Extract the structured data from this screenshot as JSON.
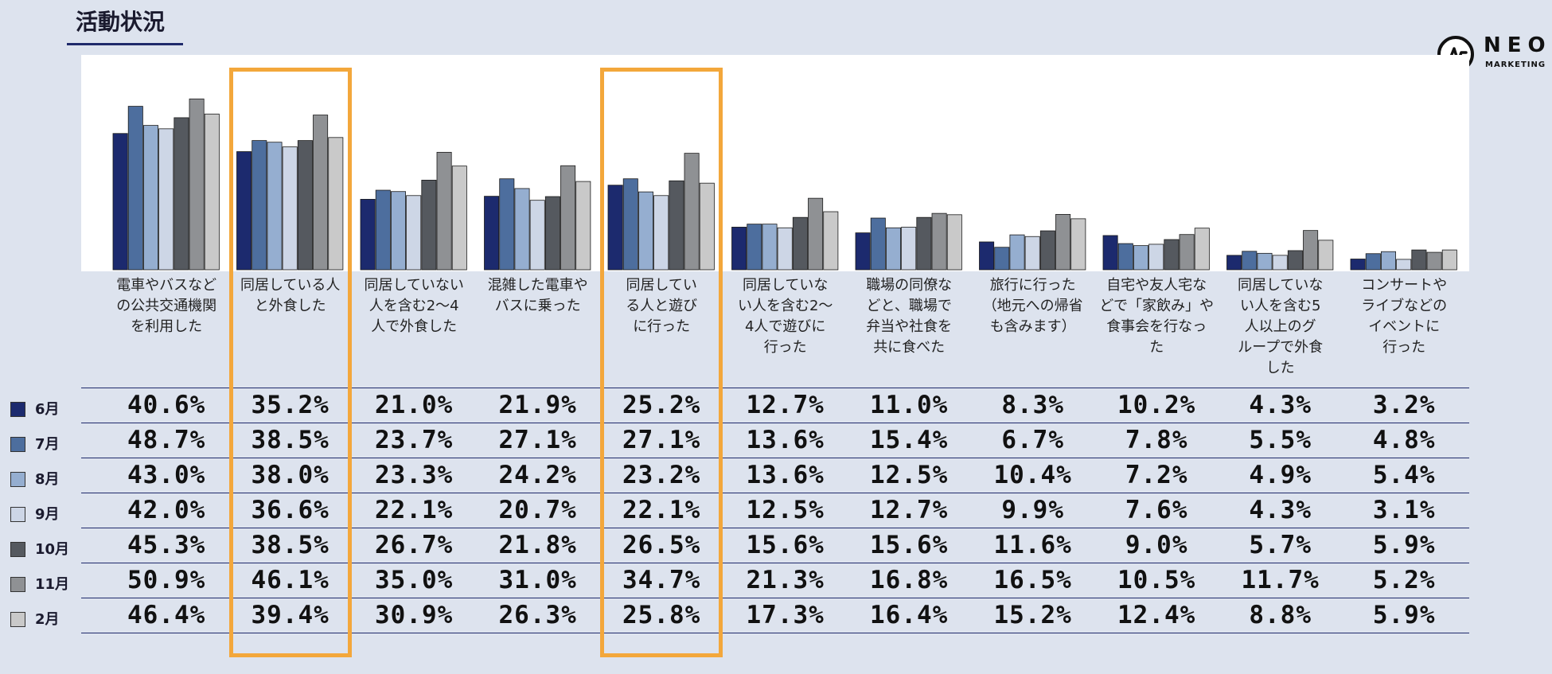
{
  "title": "活動状況",
  "logo": {
    "brand": "NEO",
    "sub": "MARKETING"
  },
  "colors": {
    "accent_border": "#f3a73b",
    "series": [
      "#1c2a6e",
      "#4d6e9e",
      "#95aed0",
      "#cdd6e6",
      "#55595f",
      "#8f9194",
      "#c9c9c9"
    ]
  },
  "chart_data": {
    "type": "bar",
    "categories": [
      "電車やバスなどの公共交通機関を利用した",
      "同居している人と外食した",
      "同居していない人を含む2～4人で外食した",
      "混雑した電車やバスに乗った",
      "同居している人と遊びに行った",
      "同居していない人を含む2～4人で遊びに行った",
      "職場の同僚などと、職場で弁当や社食を共に食べた",
      "旅行に行った（地元への帰省も含みます）",
      "自宅や友人宅などで「家飲み」や食事会を行なった",
      "同居していない人を含む5人以上のグループで外食した",
      "コンサートやライブなどのイベントに行った"
    ],
    "category_label_lines": [
      [
        "電車やバスなど",
        "の公共交通機関",
        "を利用した"
      ],
      [
        "同居している人",
        "と外食した"
      ],
      [
        "同居していない",
        "人を含む2～4",
        "人で外食した"
      ],
      [
        "混雑した電車や",
        "バスに乗った"
      ],
      [
        "同居してい",
        "る人と遊び",
        "に行った"
      ],
      [
        "同居していな",
        "い人を含む2～",
        "4人で遊びに",
        "行った"
      ],
      [
        "職場の同僚な",
        "どと、職場で",
        "弁当や社食を",
        "共に食べた"
      ],
      [
        "旅行に行った",
        "（地元への帰省",
        "も含みます）"
      ],
      [
        "自宅や友人宅な",
        "どで「家飲み」や",
        "食事会を行なっ",
        "た"
      ],
      [
        "同居していな",
        "い人を含む5",
        "人以上のグ",
        "ループで外食",
        "した"
      ],
      [
        "コンサートや",
        "ライブなどの",
        "イベントに",
        "行った"
      ]
    ],
    "ylim": [
      0,
      55
    ],
    "series": [
      {
        "name": "6月",
        "values": [
          40.6,
          35.2,
          21.0,
          21.9,
          25.2,
          12.7,
          11.0,
          8.3,
          10.2,
          4.3,
          3.2
        ]
      },
      {
        "name": "7月",
        "values": [
          48.7,
          38.5,
          23.7,
          27.1,
          27.1,
          13.6,
          15.4,
          6.7,
          7.8,
          5.5,
          4.8
        ]
      },
      {
        "name": "8月",
        "values": [
          43.0,
          38.0,
          23.3,
          24.2,
          23.2,
          13.6,
          12.5,
          10.4,
          7.2,
          4.9,
          5.4
        ]
      },
      {
        "name": "9月",
        "values": [
          42.0,
          36.6,
          22.1,
          20.7,
          22.1,
          12.5,
          12.7,
          9.9,
          7.6,
          4.3,
          3.1
        ]
      },
      {
        "name": "10月",
        "values": [
          45.3,
          38.5,
          26.7,
          21.8,
          26.5,
          15.6,
          15.6,
          11.6,
          9.0,
          5.7,
          5.9
        ]
      },
      {
        "name": "11月",
        "values": [
          50.9,
          46.1,
          35.0,
          31.0,
          34.7,
          21.3,
          16.8,
          16.5,
          10.5,
          11.7,
          5.2
        ]
      },
      {
        "name": "2月",
        "values": [
          46.4,
          39.4,
          30.9,
          26.3,
          25.8,
          17.3,
          16.4,
          15.2,
          12.4,
          8.8,
          5.9
        ]
      }
    ],
    "table_text": [
      [
        "40.6%",
        "35.2%",
        "21.0%",
        "21.9%",
        "25.2%",
        "12.7%",
        "11.0%",
        "8.3%",
        "10.2%",
        "4.3%",
        "3.2%"
      ],
      [
        "48.7%",
        "38.5%",
        "23.7%",
        "27.1%",
        "27.1%",
        "13.6%",
        "15.4%",
        "6.7%",
        "7.8%",
        "5.5%",
        "4.8%"
      ],
      [
        "43.0%",
        "38.0%",
        "23.3%",
        "24.2%",
        "23.2%",
        "13.6%",
        "12.5%",
        "10.4%",
        "7.2%",
        "4.9%",
        "5.4%"
      ],
      [
        "42.0%",
        "36.6%",
        "22.1%",
        "20.7%",
        "22.1%",
        "12.5%",
        "12.7%",
        "9.9%",
        "7.6%",
        "4.3%",
        "3.1%"
      ],
      [
        "45.3%",
        "38.5%",
        "26.7%",
        "21.8%",
        "26.5%",
        "15.6%",
        "15.6%",
        "11.6%",
        "9.0%",
        "5.7%",
        "5.9%"
      ],
      [
        "50.9%",
        "46.1%",
        "35.0%",
        "31.0%",
        "34.7%",
        "21.3%",
        "16.8%",
        "16.5%",
        "10.5%",
        "11.7%",
        "5.2%"
      ],
      [
        "46.4%",
        "39.4%",
        "30.9%",
        "26.3%",
        "25.8%",
        "17.3%",
        "16.4%",
        "15.2%",
        "12.4%",
        "8.8%",
        "5.9%"
      ]
    ],
    "highlighted_categories": [
      1,
      4
    ],
    "grid": false
  }
}
